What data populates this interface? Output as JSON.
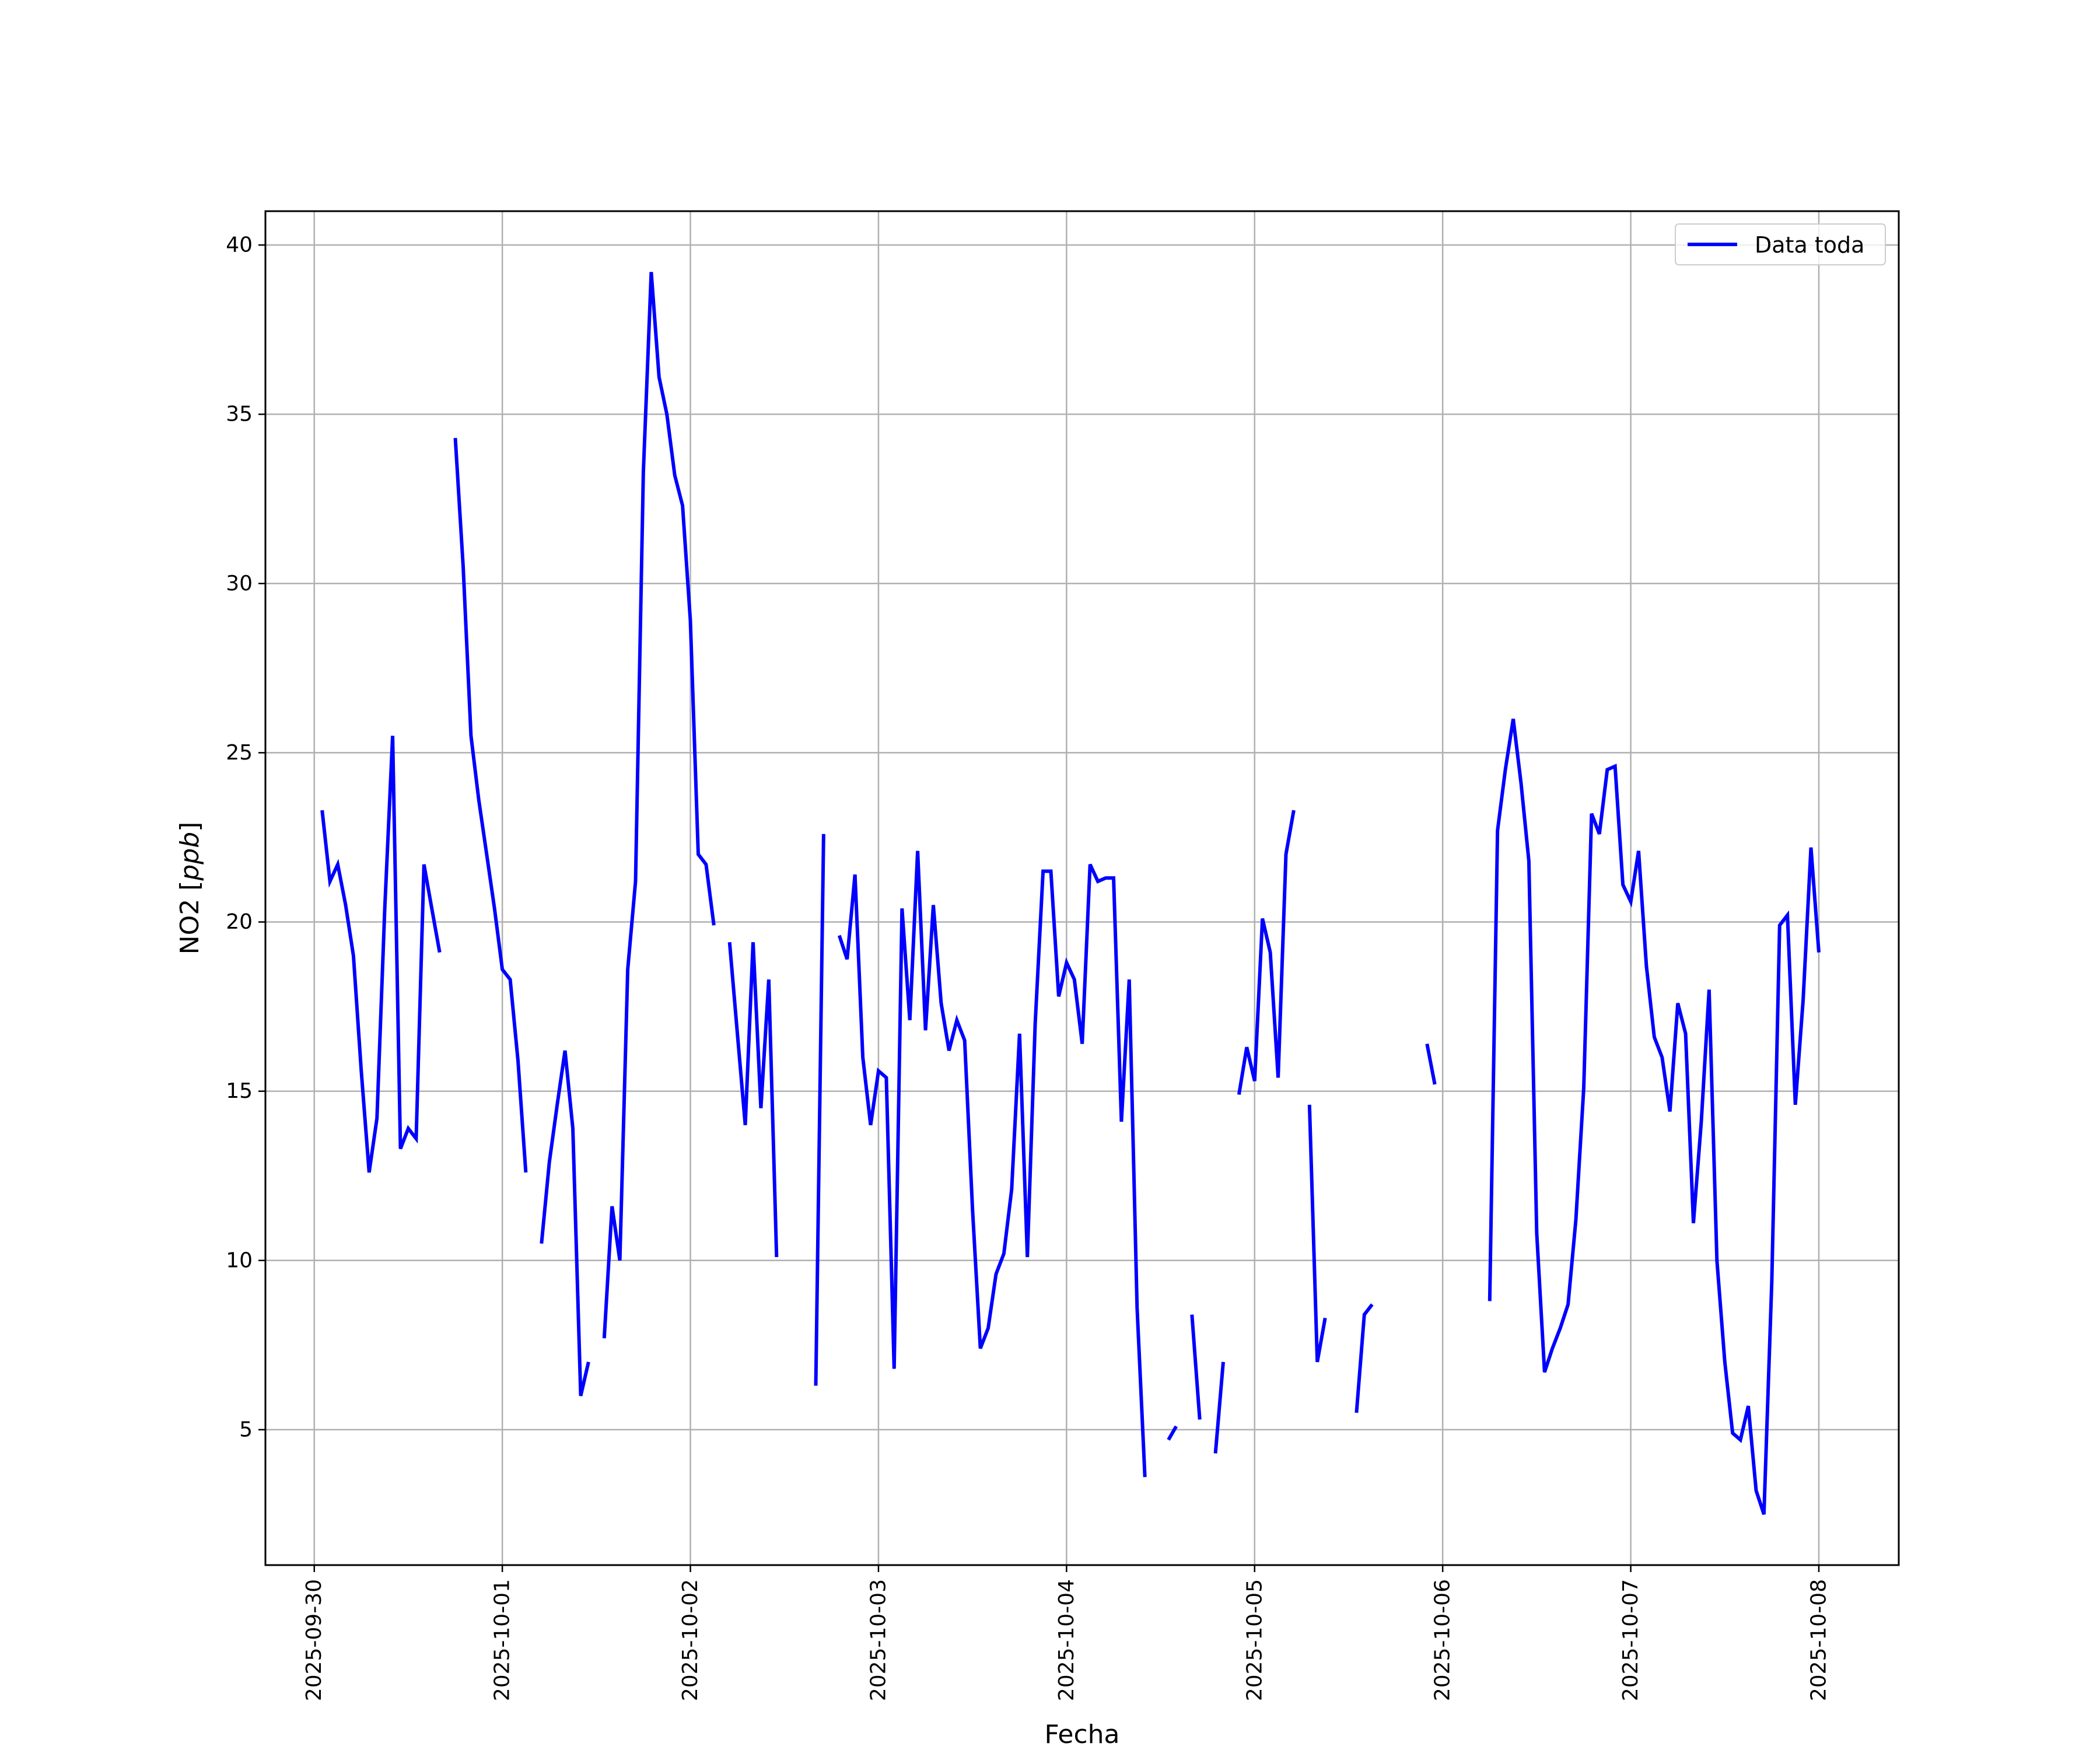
{
  "colors": {
    "series": "#0000ff",
    "grid": "#b0b0b0",
    "axes": "#000000",
    "legend_border": "#cccccc"
  },
  "chart_data": {
    "type": "line",
    "xlabel": "Fecha",
    "ylabel_text": "NO2 [",
    "ylabel_unit": "ppb",
    "ylabel_close": "]",
    "x_scale": "time",
    "xlim": [
      "2025-09-29T17:46",
      "2025-10-08T10:12"
    ],
    "ylim": [
      1.0,
      41.0
    ],
    "x_ticks": [
      "2025-09-30",
      "2025-10-01",
      "2025-10-02",
      "2025-10-03",
      "2025-10-04",
      "2025-10-05",
      "2025-10-06",
      "2025-10-07",
      "2025-10-08"
    ],
    "y_ticks": [
      5,
      10,
      15,
      20,
      25,
      30,
      35,
      40
    ],
    "grid": true,
    "legend_placement": "top-right",
    "series": [
      {
        "name": "Data toda",
        "color": "#0000ff",
        "points": [
          [
            "2025-09-30T01:00",
            23.3
          ],
          [
            "2025-09-30T02:00",
            21.2
          ],
          [
            "2025-09-30T03:00",
            21.7
          ],
          [
            "2025-09-30T04:00",
            20.5
          ],
          [
            "2025-09-30T05:00",
            19.0
          ],
          [
            "2025-09-30T06:00",
            15.6
          ],
          [
            "2025-09-30T07:00",
            12.6
          ],
          [
            "2025-09-30T08:00",
            14.2
          ],
          [
            "2025-09-30T09:00",
            20.4
          ],
          [
            "2025-09-30T10:00",
            25.5
          ],
          [
            "2025-09-30T11:00",
            13.3
          ],
          [
            "2025-09-30T12:00",
            13.9
          ],
          [
            "2025-09-30T13:00",
            13.6
          ],
          [
            "2025-09-30T14:00",
            21.7
          ],
          [
            "2025-09-30T15:00",
            20.4
          ],
          [
            "2025-09-30T16:00",
            19.1
          ],
          [
            null,
            null
          ],
          [
            "2025-09-30T18:00",
            34.3
          ],
          [
            "2025-09-30T19:00",
            30.5
          ],
          [
            "2025-09-30T20:00",
            25.5
          ],
          [
            "2025-09-30T21:00",
            23.6
          ],
          [
            "2025-09-30T22:00",
            22.0
          ],
          [
            "2025-09-30T23:00",
            20.4
          ],
          [
            "2025-10-01T00:00",
            18.6
          ],
          [
            "2025-10-01T01:00",
            18.3
          ],
          [
            "2025-10-01T02:00",
            15.9
          ],
          [
            "2025-10-01T03:00",
            12.6
          ],
          [
            null,
            null
          ],
          [
            "2025-10-01T05:00",
            10.5
          ],
          [
            "2025-10-01T06:00",
            12.9
          ],
          [
            "2025-10-01T07:00",
            14.6
          ],
          [
            "2025-10-01T08:00",
            16.2
          ],
          [
            "2025-10-01T09:00",
            13.9
          ],
          [
            "2025-10-01T10:00",
            6.0
          ],
          [
            "2025-10-01T11:00",
            7.0
          ],
          [
            null,
            null
          ],
          [
            "2025-10-01T13:00",
            7.7
          ],
          [
            "2025-10-01T14:00",
            11.6
          ],
          [
            "2025-10-01T15:00",
            10.0
          ],
          [
            "2025-10-01T16:00",
            18.6
          ],
          [
            "2025-10-01T17:00",
            21.2
          ],
          [
            "2025-10-01T18:00",
            33.3
          ],
          [
            "2025-10-01T19:00",
            39.2
          ],
          [
            "2025-10-01T20:00",
            36.1
          ],
          [
            "2025-10-01T21:00",
            35.0
          ],
          [
            "2025-10-01T22:00",
            33.2
          ],
          [
            "2025-10-01T23:00",
            32.3
          ],
          [
            "2025-10-02T00:00",
            28.9
          ],
          [
            "2025-10-02T01:00",
            22.0
          ],
          [
            "2025-10-02T02:00",
            21.7
          ],
          [
            "2025-10-02T03:00",
            19.9
          ],
          [
            null,
            null
          ],
          [
            "2025-10-02T05:00",
            19.4
          ],
          [
            "2025-10-02T06:00",
            16.7
          ],
          [
            "2025-10-02T07:00",
            14.0
          ],
          [
            "2025-10-02T08:00",
            19.4
          ],
          [
            "2025-10-02T09:00",
            14.5
          ],
          [
            "2025-10-02T10:00",
            18.3
          ],
          [
            "2025-10-02T11:00",
            10.1
          ],
          [
            null,
            null
          ],
          [
            "2025-10-02T16:00",
            6.3
          ],
          [
            "2025-10-02T17:00",
            22.6
          ],
          [
            null,
            null
          ],
          [
            "2025-10-02T19:00",
            19.6
          ],
          [
            "2025-10-02T20:00",
            18.9
          ],
          [
            "2025-10-02T21:00",
            21.4
          ],
          [
            "2025-10-02T22:00",
            16.0
          ],
          [
            "2025-10-02T23:00",
            14.0
          ],
          [
            "2025-10-03T00:00",
            15.6
          ],
          [
            "2025-10-03T01:00",
            15.4
          ],
          [
            "2025-10-03T02:00",
            6.8
          ],
          [
            "2025-10-03T03:00",
            20.4
          ],
          [
            "2025-10-03T04:00",
            17.1
          ],
          [
            "2025-10-03T05:00",
            22.1
          ],
          [
            "2025-10-03T06:00",
            16.8
          ],
          [
            "2025-10-03T07:00",
            20.5
          ],
          [
            "2025-10-03T08:00",
            17.6
          ],
          [
            "2025-10-03T09:00",
            16.2
          ],
          [
            "2025-10-03T10:00",
            17.1
          ],
          [
            "2025-10-03T11:00",
            16.5
          ],
          [
            "2025-10-03T12:00",
            11.5
          ],
          [
            "2025-10-03T13:00",
            7.4
          ],
          [
            "2025-10-03T14:00",
            8.0
          ],
          [
            "2025-10-03T15:00",
            9.6
          ],
          [
            "2025-10-03T16:00",
            10.2
          ],
          [
            "2025-10-03T17:00",
            12.1
          ],
          [
            "2025-10-03T18:00",
            16.7
          ],
          [
            "2025-10-03T19:00",
            10.1
          ],
          [
            "2025-10-03T20:00",
            17.0
          ],
          [
            "2025-10-03T21:00",
            21.5
          ],
          [
            "2025-10-03T22:00",
            21.5
          ],
          [
            "2025-10-03T23:00",
            17.8
          ],
          [
            "2025-10-04T00:00",
            18.8
          ],
          [
            "2025-10-04T01:00",
            18.3
          ],
          [
            "2025-10-04T02:00",
            16.4
          ],
          [
            "2025-10-04T03:00",
            21.7
          ],
          [
            "2025-10-04T04:00",
            21.2
          ],
          [
            "2025-10-04T05:00",
            21.3
          ],
          [
            "2025-10-04T06:00",
            21.3
          ],
          [
            "2025-10-04T07:00",
            14.1
          ],
          [
            "2025-10-04T08:00",
            18.3
          ],
          [
            "2025-10-04T09:00",
            8.6
          ],
          [
            "2025-10-04T10:00",
            3.6
          ],
          [
            null,
            null
          ],
          [
            "2025-10-04T13:00",
            4.7
          ],
          [
            "2025-10-04T14:00",
            5.1
          ],
          [
            null,
            null
          ],
          [
            "2025-10-04T16:00",
            8.4
          ],
          [
            "2025-10-04T17:00",
            5.3
          ],
          [
            null,
            null
          ],
          [
            "2025-10-04T19:00",
            4.3
          ],
          [
            "2025-10-04T20:00",
            7.0
          ],
          [
            null,
            null
          ],
          [
            "2025-10-04T22:00",
            14.9
          ],
          [
            "2025-10-04T23:00",
            16.3
          ],
          [
            "2025-10-05T00:00",
            15.3
          ],
          [
            "2025-10-05T01:00",
            20.1
          ],
          [
            "2025-10-05T02:00",
            19.1
          ],
          [
            "2025-10-05T03:00",
            15.4
          ],
          [
            "2025-10-05T04:00",
            22.0
          ],
          [
            "2025-10-05T05:00",
            23.3
          ],
          [
            null,
            null
          ],
          [
            "2025-10-05T07:00",
            14.6
          ],
          [
            "2025-10-05T08:00",
            7.0
          ],
          [
            "2025-10-05T09:00",
            8.3
          ],
          [
            null,
            null
          ],
          [
            "2025-10-05T13:00",
            5.5
          ],
          [
            "2025-10-05T14:00",
            8.4
          ],
          [
            "2025-10-05T15:00",
            8.7
          ],
          [
            null,
            null
          ],
          [
            "2025-10-05T22:00",
            16.4
          ],
          [
            "2025-10-05T23:00",
            15.2
          ],
          [
            null,
            null
          ],
          [
            "2025-10-06T06:00",
            8.8
          ],
          [
            "2025-10-06T07:00",
            22.7
          ],
          [
            "2025-10-06T08:00",
            24.5
          ],
          [
            "2025-10-06T09:00",
            26.0
          ],
          [
            "2025-10-06T10:00",
            24.1
          ],
          [
            "2025-10-06T11:00",
            21.8
          ],
          [
            "2025-10-06T12:00",
            10.8
          ],
          [
            "2025-10-06T13:00",
            6.7
          ],
          [
            "2025-10-06T14:00",
            7.4
          ],
          [
            "2025-10-06T15:00",
            8.0
          ],
          [
            "2025-10-06T16:00",
            8.7
          ],
          [
            "2025-10-06T17:00",
            11.2
          ],
          [
            "2025-10-06T18:00",
            15.1
          ],
          [
            "2025-10-06T19:00",
            23.2
          ],
          [
            "2025-10-06T20:00",
            22.6
          ],
          [
            "2025-10-06T21:00",
            24.5
          ],
          [
            "2025-10-06T22:00",
            24.6
          ],
          [
            "2025-10-06T23:00",
            21.1
          ],
          [
            "2025-10-07T00:00",
            20.6
          ],
          [
            "2025-10-07T01:00",
            22.1
          ],
          [
            "2025-10-07T02:00",
            18.7
          ],
          [
            "2025-10-07T03:00",
            16.6
          ],
          [
            "2025-10-07T04:00",
            16.0
          ],
          [
            "2025-10-07T05:00",
            14.4
          ],
          [
            "2025-10-07T06:00",
            17.6
          ],
          [
            "2025-10-07T07:00",
            16.7
          ],
          [
            "2025-10-07T08:00",
            11.1
          ],
          [
            "2025-10-07T09:00",
            14.1
          ],
          [
            "2025-10-07T10:00",
            18.0
          ],
          [
            "2025-10-07T11:00",
            10.0
          ],
          [
            "2025-10-07T12:00",
            7.0
          ],
          [
            "2025-10-07T13:00",
            4.9
          ],
          [
            "2025-10-07T14:00",
            4.7
          ],
          [
            "2025-10-07T15:00",
            5.7
          ],
          [
            "2025-10-07T16:00",
            3.2
          ],
          [
            "2025-10-07T17:00",
            2.5
          ],
          [
            "2025-10-07T18:00",
            9.4
          ],
          [
            "2025-10-07T19:00",
            19.9
          ],
          [
            "2025-10-07T20:00",
            20.2
          ],
          [
            "2025-10-07T21:00",
            14.6
          ],
          [
            "2025-10-07T22:00",
            17.7
          ],
          [
            "2025-10-07T23:00",
            22.2
          ],
          [
            "2025-10-08T00:00",
            19.1
          ]
        ]
      }
    ]
  }
}
